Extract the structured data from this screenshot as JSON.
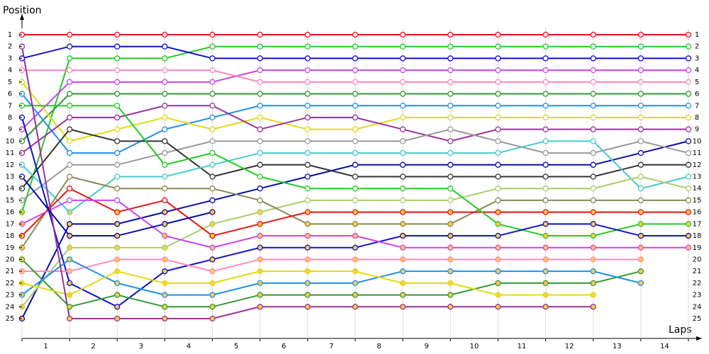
{
  "chart_data": {
    "type": "line",
    "y_label": "Position",
    "x_label": "Laps",
    "x": [
      0,
      1,
      2,
      3,
      4,
      5,
      6,
      7,
      8,
      9,
      10,
      11,
      12,
      13,
      14
    ],
    "xlim": [
      0,
      14
    ],
    "xticks": [
      1,
      2,
      3,
      4,
      5,
      6,
      7,
      8,
      9,
      10,
      11,
      12,
      13,
      14
    ],
    "ylim": [
      25,
      1
    ],
    "yticks": [
      1,
      2,
      3,
      4,
      5,
      6,
      7,
      8,
      9,
      10,
      11,
      12,
      13,
      14,
      15,
      16,
      17,
      18,
      19,
      20,
      21,
      22,
      23,
      24,
      25
    ],
    "grid": true,
    "series": [
      {
        "color": "#ee1111",
        "values": [
          1,
          1,
          1,
          1,
          1,
          1,
          1,
          1,
          1,
          1,
          1,
          1,
          1,
          1,
          1
        ]
      },
      {
        "color": "#22cc22",
        "values": [
          16,
          3,
          3,
          3,
          2,
          2,
          2,
          2,
          2,
          2,
          2,
          2,
          2,
          2,
          2
        ]
      },
      {
        "color": "#1111cc",
        "values": [
          3,
          2,
          2,
          2,
          3,
          3,
          3,
          3,
          3,
          3,
          3,
          3,
          3,
          3,
          3
        ]
      },
      {
        "color": "#cc44ee",
        "values": [
          9,
          5,
          5,
          5,
          5,
          4,
          4,
          4,
          4,
          4,
          4,
          4,
          4,
          4,
          4
        ]
      },
      {
        "color": "#ff88bb",
        "values": [
          4,
          4,
          4,
          4,
          4,
          5,
          5,
          5,
          5,
          5,
          5,
          5,
          5,
          5,
          5
        ]
      },
      {
        "color": "#339933",
        "values": [
          10,
          6,
          6,
          6,
          6,
          6,
          6,
          6,
          6,
          6,
          6,
          6,
          6,
          6,
          6
        ]
      },
      {
        "color": "#1e90ee",
        "values": [
          6,
          11,
          11,
          9,
          8,
          7,
          7,
          7,
          7,
          7,
          7,
          7,
          7,
          7,
          7
        ]
      },
      {
        "color": "#dddd11",
        "values": [
          5,
          10,
          9,
          8,
          9,
          8,
          9,
          9,
          8,
          8,
          8,
          8,
          8,
          8,
          8
        ]
      },
      {
        "color": "#993399",
        "values": [
          11,
          8,
          8,
          7,
          7,
          9,
          8,
          8,
          9,
          10,
          9,
          9,
          9,
          9,
          9
        ]
      },
      {
        "color": "#0a0aa8",
        "values": [
          25,
          17,
          17,
          16,
          15,
          14,
          13,
          12,
          12,
          12,
          12,
          12,
          12,
          11,
          10
        ]
      },
      {
        "color": "#999999",
        "values": [
          15,
          12,
          12,
          11,
          10,
          10,
          10,
          10,
          10,
          9,
          10,
          11,
          11,
          10,
          11
        ]
      },
      {
        "color": "#333333",
        "values": [
          14,
          9,
          10,
          10,
          13,
          12,
          12,
          13,
          13,
          13,
          13,
          13,
          13,
          12,
          12
        ]
      },
      {
        "color": "#44cccc",
        "values": [
          12,
          16,
          13,
          13,
          12,
          11,
          11,
          11,
          11,
          11,
          11,
          10,
          10,
          14,
          13
        ]
      },
      {
        "color": "#aacc66",
        "values": [
          24,
          19,
          19,
          19,
          17,
          16,
          15,
          15,
          15,
          15,
          14,
          14,
          14,
          13,
          14
        ]
      },
      {
        "color": "#888855",
        "values": [
          19,
          13,
          14,
          14,
          14,
          15,
          17,
          17,
          17,
          17,
          15,
          15,
          15,
          15,
          15
        ]
      },
      {
        "color": "#ee1111",
        "values": [
          18,
          14,
          16,
          15,
          18,
          17,
          16,
          16,
          16,
          16,
          16,
          16,
          16,
          16,
          16
        ]
      },
      {
        "color": "#22cc22",
        "values": [
          7,
          7,
          7,
          12,
          11,
          13,
          14,
          14,
          14,
          14,
          17,
          18,
          18,
          17,
          17
        ]
      },
      {
        "color": "#1111cc",
        "values": [
          8,
          22,
          24,
          21,
          20,
          19,
          19,
          19,
          18,
          18,
          18,
          17,
          17,
          18,
          18
        ]
      },
      {
        "color": "#cc44ee",
        "values": [
          17,
          15,
          15,
          18,
          19,
          18,
          18,
          18,
          19,
          19,
          19,
          19,
          19,
          19,
          19
        ]
      },
      {
        "color": "#ff88bb",
        "values": [
          21,
          21,
          20,
          20,
          21,
          20,
          20,
          20,
          20,
          20,
          20,
          20,
          20,
          20,
          null
        ]
      },
      {
        "color": "#339933",
        "values": [
          20,
          24,
          23,
          24,
          24,
          23,
          23,
          23,
          23,
          23,
          22,
          22,
          22,
          21,
          null
        ]
      },
      {
        "color": "#1e90ee",
        "values": [
          23,
          20,
          22,
          23,
          23,
          22,
          22,
          22,
          21,
          21,
          21,
          21,
          21,
          22,
          null
        ]
      },
      {
        "color": "#dddd11",
        "values": [
          22,
          23,
          21,
          22,
          22,
          21,
          21,
          21,
          22,
          22,
          23,
          23,
          23,
          null,
          null
        ]
      },
      {
        "color": "#993399",
        "values": [
          2,
          25,
          25,
          25,
          25,
          24,
          24,
          24,
          24,
          24,
          24,
          24,
          24,
          null,
          null
        ]
      },
      {
        "color": "#0a0aa8",
        "values": [
          13,
          18,
          18,
          17,
          16,
          null,
          null,
          null,
          null,
          null,
          null,
          null,
          null,
          null,
          null
        ]
      }
    ]
  }
}
